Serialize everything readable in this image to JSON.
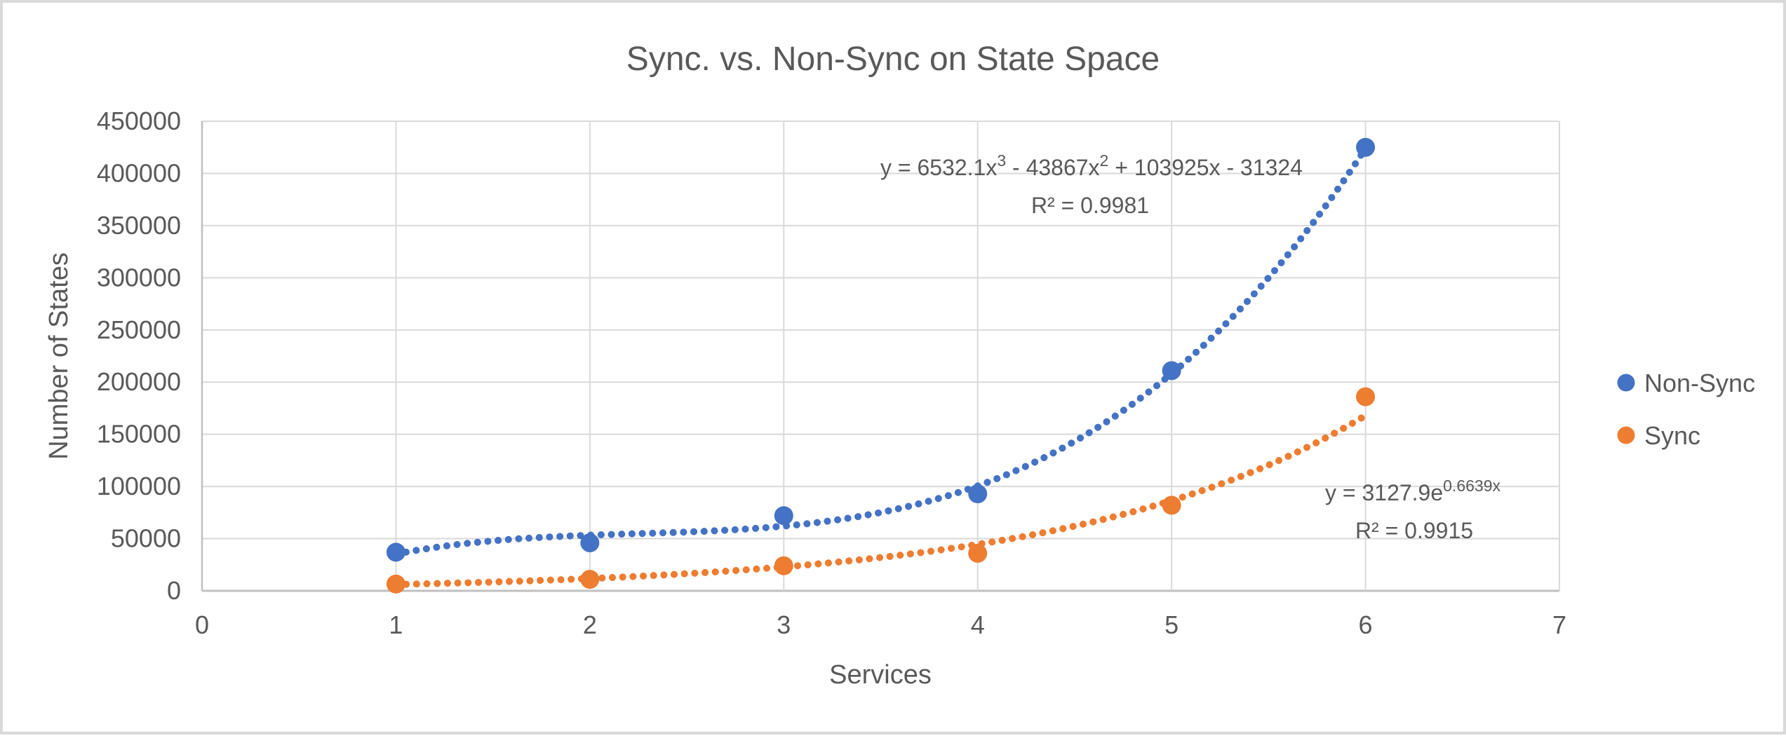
{
  "chart_data": {
    "type": "scatter",
    "title": "Sync. vs. Non-Sync on State Space",
    "xlabel": "Services",
    "ylabel": "Number of States",
    "xlim": [
      0,
      7
    ],
    "ylim": [
      0,
      450000
    ],
    "x_ticks": [
      0,
      1,
      2,
      3,
      4,
      5,
      6,
      7
    ],
    "y_ticks": [
      0,
      50000,
      100000,
      150000,
      200000,
      250000,
      300000,
      350000,
      400000,
      450000
    ],
    "grid": true,
    "legend_position": "right",
    "x": [
      1,
      2,
      3,
      4,
      5,
      6
    ],
    "series": [
      {
        "name": "Non-Sync",
        "color": "#4472C4",
        "values": [
          37000,
          46000,
          72000,
          93000,
          211000,
          425000
        ],
        "trendline": {
          "kind": "polynomial",
          "coeffs": [
            6532.1,
            -43867,
            103925,
            -31324
          ],
          "range": [
            1,
            6
          ]
        },
        "equation": {
          "prefix": "y = 6532.1x",
          "sup1": "3",
          "mid1": " - 43867x",
          "sup2": "2",
          "tail": " + 103925x - 31324"
        },
        "r2": "R² = 0.9981"
      },
      {
        "name": "Sync",
        "color": "#ED7D31",
        "values": [
          6500,
          11000,
          24000,
          36000,
          82000,
          186000
        ],
        "trendline": {
          "kind": "exponential",
          "a": 3127.9,
          "b": 0.6639,
          "range": [
            1,
            6
          ]
        },
        "equation": {
          "prefix": "y = 3127.9e",
          "sup1": "0.6639x"
        },
        "r2": "R² = 0.9915"
      }
    ],
    "colors": {
      "grid_line": "#D9D9D9",
      "axis_line": "#BFBFBF",
      "text": "#595959",
      "frame_border": "#D9D9D9"
    }
  }
}
